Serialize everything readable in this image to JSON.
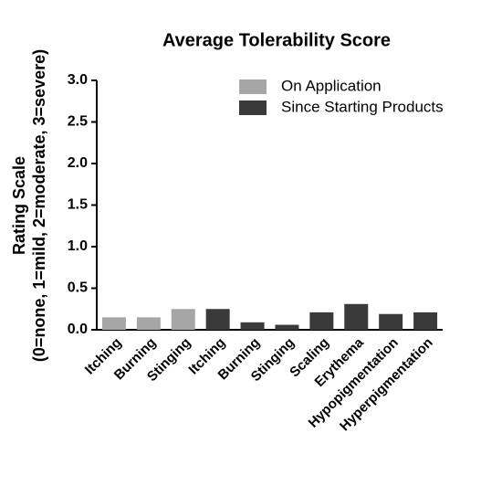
{
  "chart_data": {
    "type": "bar",
    "title": "Average Tolerability Score",
    "ylabel": [
      "Rating Scale",
      "(0=none, 1=mild, 2=moderate, 3=severe)"
    ],
    "categories": [
      "Itching",
      "Burning",
      "Stinging",
      "Itching",
      "Burning",
      "Stinging",
      "Scaling",
      "Erythema",
      "Hypopigmentation",
      "Hyperpigmentation"
    ],
    "series": [
      {
        "name": "On Application",
        "color": "#a6a6a6",
        "values": [
          0.15,
          0.15,
          0.25,
          null,
          null,
          null,
          null,
          null,
          null,
          null
        ]
      },
      {
        "name": "Since Starting Products",
        "color": "#3a3a3a",
        "values": [
          null,
          null,
          null,
          0.25,
          0.09,
          0.06,
          0.21,
          0.31,
          0.19,
          0.21
        ]
      }
    ],
    "ylim": [
      0,
      3
    ],
    "yticks": [
      {
        "value": 0,
        "label": "0.0"
      },
      {
        "value": 0.5,
        "label": "0.5"
      },
      {
        "value": 1,
        "label": "1.0"
      },
      {
        "value": 1.5,
        "label": "1.5"
      },
      {
        "value": 2,
        "label": "2.0"
      },
      {
        "value": 2.5,
        "label": "2.5"
      },
      {
        "value": 3,
        "label": "3.0"
      }
    ],
    "legend": "upper right"
  }
}
